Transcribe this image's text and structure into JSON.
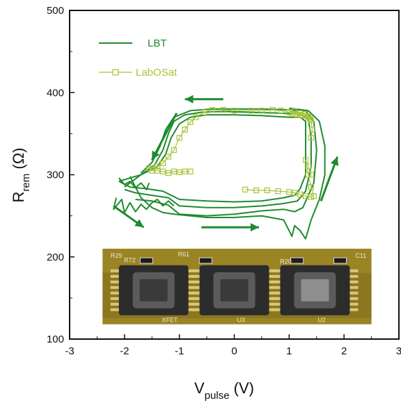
{
  "chart_data": {
    "type": "line",
    "xlabel": {
      "main": "V",
      "sub": "pulse",
      "unit": " (V)"
    },
    "ylabel": {
      "main": "R",
      "sub": "rem",
      "unit": " (Ω)"
    },
    "xlim": [
      -3,
      3
    ],
    "ylim": [
      100,
      500
    ],
    "xticks": [
      "-3",
      "-2",
      "-1",
      "0",
      "1",
      "2",
      "3"
    ],
    "yticks": [
      "100",
      "200",
      "300",
      "400",
      "500"
    ],
    "grid": false,
    "legend_placement": "top-left",
    "series": [
      {
        "name": "LBT",
        "color": "#1f8a2e",
        "marker": "none",
        "loops": [
          [
            [
              -2.1,
              292
            ],
            [
              -1.9,
              285
            ],
            [
              -1.6,
              283
            ],
            [
              -1.3,
              280
            ],
            [
              -1.0,
              270
            ],
            [
              -0.5,
              268
            ],
            [
              0,
              267
            ],
            [
              0.5,
              268
            ],
            [
              0.9,
              272
            ],
            [
              1.1,
              275
            ],
            [
              1.2,
              283
            ],
            [
              1.3,
              300
            ],
            [
              1.3,
              340
            ],
            [
              1.3,
              365
            ],
            [
              1.2,
              370
            ],
            [
              1.0,
              370
            ],
            [
              0.5,
              372
            ],
            [
              0,
              373
            ],
            [
              -0.5,
              373
            ],
            [
              -0.8,
              370
            ],
            [
              -1.0,
              362
            ],
            [
              -1.15,
              345
            ],
            [
              -1.25,
              325
            ],
            [
              -1.4,
              310
            ],
            [
              -1.7,
              300
            ],
            [
              -2.0,
              294
            ],
            [
              -2.1,
              292
            ]
          ],
          [
            [
              -2.0,
              282
            ],
            [
              -1.8,
              278
            ],
            [
              -1.5,
              275
            ],
            [
              -1.2,
              272
            ],
            [
              -1.0,
              262
            ],
            [
              -0.5,
              260
            ],
            [
              0,
              260
            ],
            [
              0.5,
              262
            ],
            [
              0.9,
              265
            ],
            [
              1.15,
              268
            ],
            [
              1.3,
              280
            ],
            [
              1.4,
              310
            ],
            [
              1.4,
              345
            ],
            [
              1.35,
              368
            ],
            [
              1.2,
              374
            ],
            [
              0.8,
              375
            ],
            [
              0.3,
              376
            ],
            [
              -0.2,
              377
            ],
            [
              -0.6,
              376
            ],
            [
              -0.9,
              373
            ],
            [
              -1.1,
              365
            ],
            [
              -1.2,
              350
            ],
            [
              -1.3,
              330
            ],
            [
              -1.45,
              312
            ],
            [
              -1.7,
              300
            ],
            [
              -2.0,
              285
            ]
          ],
          [
            [
              -1.8,
              270
            ],
            [
              -1.5,
              268
            ],
            [
              -1.2,
              263
            ],
            [
              -1.0,
              252
            ],
            [
              -0.5,
              250
            ],
            [
              0,
              252
            ],
            [
              0.5,
              256
            ],
            [
              0.9,
              258
            ],
            [
              1.1,
              255
            ],
            [
              1.25,
              260
            ],
            [
              1.45,
              290
            ],
            [
              1.5,
              330
            ],
            [
              1.45,
              365
            ],
            [
              1.3,
              378
            ],
            [
              1.0,
              379
            ],
            [
              0.5,
              380
            ],
            [
              0,
              380
            ],
            [
              -0.4,
              380
            ],
            [
              -0.8,
              378
            ],
            [
              -1.1,
              370
            ],
            [
              -1.25,
              355
            ],
            [
              -1.35,
              335
            ],
            [
              -1.5,
              315
            ],
            [
              -1.7,
              302
            ]
          ],
          [
            [
              -1.9,
              298
            ],
            [
              -1.7,
              272
            ],
            [
              -1.5,
              260
            ],
            [
              -1.3,
              254
            ],
            [
              -1.1,
              252
            ],
            [
              -0.8,
              250
            ],
            [
              -0.5,
              248
            ],
            [
              0,
              248
            ],
            [
              0.5,
              250
            ],
            [
              0.9,
              245
            ],
            [
              1.0,
              232
            ],
            [
              1.05,
              225
            ],
            [
              1.1,
              238
            ],
            [
              1.2,
              232
            ],
            [
              1.3,
              222
            ],
            [
              1.4,
              245
            ],
            [
              1.55,
              270
            ],
            [
              1.65,
              300
            ],
            [
              1.65,
              335
            ],
            [
              1.55,
              365
            ],
            [
              1.35,
              378
            ],
            [
              1.0,
              381
            ]
          ],
          [
            [
              -2.15,
              272
            ],
            [
              -2.2,
              258
            ],
            [
              -2.05,
              270
            ],
            [
              -2.0,
              254
            ],
            [
              -1.9,
              266
            ],
            [
              -1.8,
              255
            ],
            [
              -1.7,
              264
            ],
            [
              -1.6,
              258
            ],
            [
              -1.5,
              266
            ],
            [
              -1.4,
              270
            ],
            [
              -1.3,
              262
            ],
            [
              -1.2,
              268
            ],
            [
              -1.1,
              262
            ]
          ],
          [
            [
              -2.1,
              296
            ],
            [
              -2.0,
              288
            ],
            [
              -1.9,
              292
            ],
            [
              -1.8,
              284
            ],
            [
              -1.7,
              290
            ],
            [
              -1.6,
              282
            ],
            [
              -1.55,
              290
            ]
          ]
        ]
      },
      {
        "name": "LabOSat",
        "color": "#a8c23a",
        "marker": "square",
        "segments": [
          [
            [
              -0.9,
              355
            ],
            [
              -0.8,
              364
            ],
            [
              -0.7,
              370
            ],
            [
              -0.55,
              376
            ],
            [
              -0.4,
              379
            ],
            [
              -0.2,
              379
            ],
            [
              0,
              378
            ],
            [
              0.3,
              378
            ],
            [
              0.5,
              378
            ],
            [
              0.7,
              379
            ],
            [
              0.85,
              378
            ],
            [
              1.0,
              376
            ],
            [
              1.1,
              374
            ],
            [
              1.2,
              373
            ],
            [
              1.3,
              372
            ],
            [
              1.35,
              370
            ],
            [
              1.4,
              366
            ],
            [
              1.42,
              355
            ],
            [
              1.4,
              345
            ]
          ],
          [
            [
              -0.9,
              355
            ],
            [
              -1.0,
              345
            ],
            [
              -1.1,
              330
            ],
            [
              -1.2,
              322
            ],
            [
              -1.3,
              314
            ],
            [
              -1.4,
              310
            ],
            [
              -1.5,
              308
            ],
            [
              -1.55,
              308
            ],
            [
              -1.5,
              305
            ],
            [
              -1.4,
              305
            ],
            [
              -1.3,
              304
            ],
            [
              -1.2,
              302
            ],
            [
              -1.1,
              304
            ],
            [
              -1.0,
              303
            ],
            [
              -0.9,
              304
            ],
            [
              -0.8,
              304
            ]
          ],
          [
            [
              0.2,
              282
            ],
            [
              0.4,
              281
            ],
            [
              0.6,
              281
            ],
            [
              0.8,
              280
            ],
            [
              1.0,
              279
            ],
            [
              1.1,
              278
            ],
            [
              1.2,
              276
            ],
            [
              1.3,
              274
            ],
            [
              1.4,
              273
            ],
            [
              1.45,
              274
            ],
            [
              1.4,
              285
            ],
            [
              1.35,
              300
            ],
            [
              1.3,
              318
            ],
            [
              1.35,
              310
            ],
            [
              1.4,
              300
            ]
          ],
          [
            [
              1.0,
              376
            ],
            [
              1.05,
              374
            ],
            [
              1.1,
              377
            ],
            [
              1.15,
              373
            ],
            [
              1.2,
              375
            ],
            [
              1.25,
              372
            ],
            [
              1.3,
              374
            ],
            [
              1.35,
              371
            ],
            [
              1.38,
              368
            ]
          ]
        ]
      }
    ],
    "annotations": [
      {
        "type": "arrow",
        "color": "#1f8a2e",
        "from": [
          -0.2,
          392
        ],
        "to": [
          -0.9,
          392
        ]
      },
      {
        "type": "arrow",
        "color": "#1f8a2e",
        "from": [
          -1.05,
          375
        ],
        "to": [
          -1.5,
          318
        ]
      },
      {
        "type": "arrow",
        "color": "#1f8a2e",
        "from": [
          -2.2,
          262
        ],
        "to": [
          -1.65,
          236
        ]
      },
      {
        "type": "arrow",
        "color": "#1f8a2e",
        "from": [
          -0.6,
          236
        ],
        "to": [
          0.45,
          236
        ]
      },
      {
        "type": "arrow",
        "color": "#1f8a2e",
        "from": [
          1.58,
          268
        ],
        "to": [
          1.88,
          322
        ]
      }
    ],
    "inset_image": {
      "description_labels": [
        "R29",
        "R72",
        "R61",
        "R20",
        "C11",
        "XFET",
        "U3",
        "U2"
      ],
      "extent_x": [
        -2.4,
        2.5
      ],
      "extent_y": [
        118,
        210
      ]
    }
  }
}
